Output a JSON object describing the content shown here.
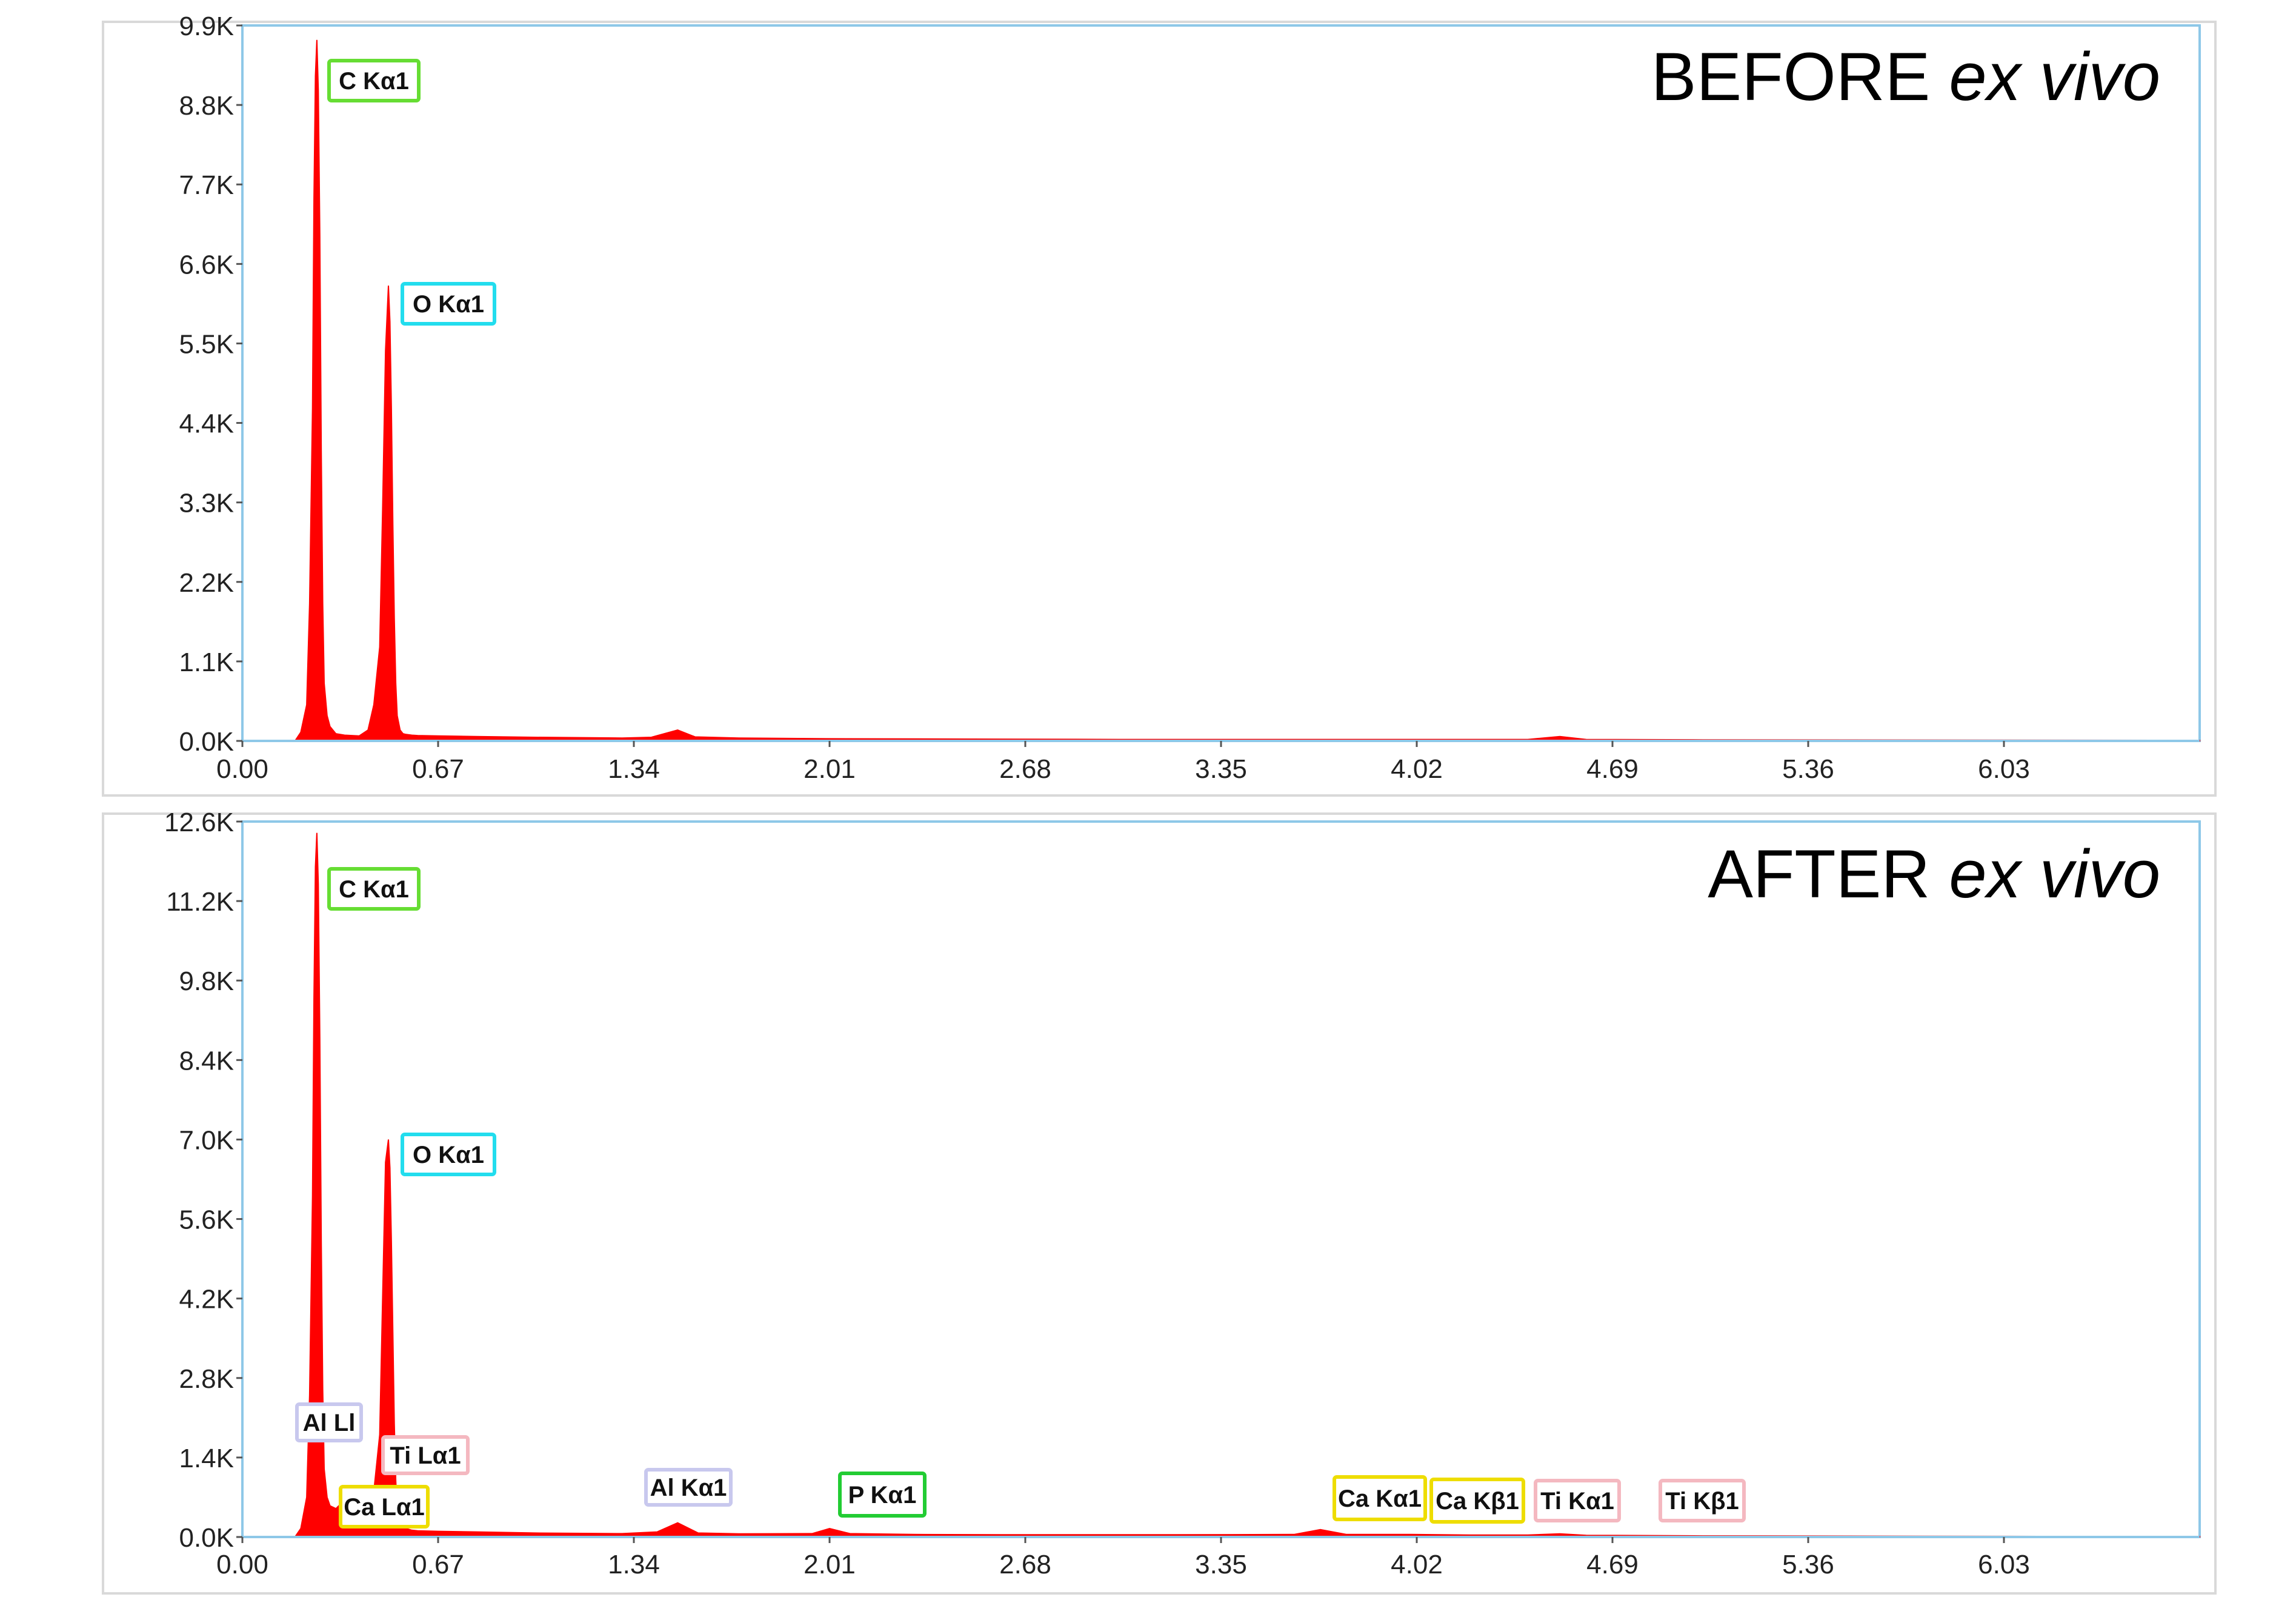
{
  "chart_data": [
    {
      "type": "area",
      "title": "BEFORE ex vivo",
      "title_main": "BEFORE ",
      "title_italic": "ex vivo",
      "xlabel": "",
      "ylabel": "",
      "xlim": [
        0.0,
        6.7
      ],
      "ylim": [
        0,
        9900
      ],
      "x_ticks": [
        0.0,
        0.67,
        1.34,
        2.01,
        2.68,
        3.35,
        4.02,
        4.69,
        5.36,
        6.03
      ],
      "x_tick_labels": [
        "0.00",
        "0.67",
        "1.34",
        "2.01",
        "2.68",
        "3.35",
        "4.02",
        "4.69",
        "5.36",
        "6.03"
      ],
      "y_ticks": [
        0,
        1100,
        2200,
        3300,
        4400,
        5500,
        6600,
        7700,
        8800,
        9900
      ],
      "y_tick_labels": [
        "0.0K",
        "1.1K",
        "2.2K",
        "3.3K",
        "4.4K",
        "5.5K",
        "6.6K",
        "7.7K",
        "8.8K",
        "9.9K"
      ],
      "grid": false,
      "series_color": "#ff0000",
      "spectrum": {
        "x": [
          0.18,
          0.2,
          0.22,
          0.23,
          0.24,
          0.245,
          0.25,
          0.255,
          0.26,
          0.265,
          0.27,
          0.275,
          0.28,
          0.29,
          0.3,
          0.32,
          0.35,
          0.4,
          0.43,
          0.45,
          0.47,
          0.48,
          0.49,
          0.5,
          0.505,
          0.51,
          0.515,
          0.52,
          0.525,
          0.53,
          0.54,
          0.55,
          0.56,
          0.58,
          0.6,
          0.67,
          0.8,
          1.0,
          1.3,
          1.4,
          1.49,
          1.55,
          1.7,
          2.0,
          2.5,
          3.0,
          3.5,
          4.0,
          4.4,
          4.51,
          4.6,
          5.0,
          6.0,
          6.7
        ],
        "y": [
          0,
          120,
          500,
          1900,
          4600,
          7500,
          9200,
          9700,
          9000,
          7000,
          4000,
          1900,
          800,
          350,
          200,
          100,
          80,
          70,
          150,
          500,
          1300,
          3200,
          5400,
          6300,
          5800,
          4600,
          3000,
          1700,
          800,
          350,
          150,
          100,
          90,
          80,
          75,
          70,
          60,
          50,
          40,
          50,
          150,
          55,
          40,
          30,
          25,
          20,
          20,
          20,
          20,
          60,
          20,
          15,
          10,
          8
        ]
      },
      "peak_labels": [
        {
          "text": "C  Kα1",
          "color": "#66dd33"
        },
        {
          "text": "O  Kα1",
          "color": "#22ddee"
        }
      ]
    },
    {
      "type": "area",
      "title": "AFTER ex vivo",
      "title_main": "AFTER ",
      "title_italic": "ex vivo",
      "xlabel": "",
      "ylabel": "",
      "xlim": [
        0.0,
        6.7
      ],
      "ylim": [
        0,
        12600
      ],
      "x_ticks": [
        0.0,
        0.67,
        1.34,
        2.01,
        2.68,
        3.35,
        4.02,
        4.69,
        5.36,
        6.03
      ],
      "x_tick_labels": [
        "0.00",
        "0.67",
        "1.34",
        "2.01",
        "2.68",
        "3.35",
        "4.02",
        "4.69",
        "5.36",
        "6.03"
      ],
      "y_ticks": [
        0,
        1400,
        2800,
        4200,
        5600,
        7000,
        8400,
        9800,
        11200,
        12600
      ],
      "y_tick_labels": [
        "0.0K",
        "1.4K",
        "2.8K",
        "4.2K",
        "5.6K",
        "7.0K",
        "8.4K",
        "9.8K",
        "11.2K",
        "12.6K"
      ],
      "grid": false,
      "series_color": "#ff0000",
      "spectrum": {
        "x": [
          0.18,
          0.2,
          0.22,
          0.23,
          0.24,
          0.245,
          0.25,
          0.255,
          0.26,
          0.265,
          0.27,
          0.275,
          0.28,
          0.29,
          0.3,
          0.32,
          0.34,
          0.35,
          0.37,
          0.39,
          0.4,
          0.42,
          0.43,
          0.45,
          0.47,
          0.48,
          0.49,
          0.5,
          0.505,
          0.51,
          0.515,
          0.52,
          0.525,
          0.53,
          0.54,
          0.55,
          0.56,
          0.58,
          0.6,
          0.67,
          0.8,
          1.0,
          1.3,
          1.42,
          1.49,
          1.56,
          1.7,
          1.95,
          2.01,
          2.08,
          2.3,
          2.68,
          3.2,
          3.6,
          3.69,
          3.78,
          3.9,
          4.0,
          4.2,
          4.4,
          4.51,
          4.6,
          5.0,
          6.0,
          6.7
        ],
        "y": [
          0,
          150,
          700,
          2500,
          6000,
          9500,
          11800,
          12400,
          11500,
          8800,
          5200,
          2600,
          1200,
          700,
          550,
          500,
          600,
          850,
          700,
          550,
          600,
          700,
          600,
          800,
          1800,
          4200,
          6600,
          7000,
          6500,
          5200,
          3600,
          2000,
          1000,
          450,
          250,
          180,
          150,
          120,
          110,
          100,
          90,
          70,
          60,
          90,
          250,
          70,
          55,
          60,
          150,
          60,
          45,
          40,
          40,
          45,
          130,
          45,
          45,
          45,
          35,
          35,
          55,
          30,
          20,
          12,
          8
        ]
      },
      "peak_labels": [
        {
          "text": "C  Kα1",
          "color": "#66dd33"
        },
        {
          "text": "O  Kα1",
          "color": "#22ddee"
        },
        {
          "text": "Al Ll",
          "color": "#c8c8ee"
        },
        {
          "text": "Ti Lα1",
          "color": "#f4b8c0"
        },
        {
          "text": "Ca Lα1",
          "color": "#eedd00"
        },
        {
          "text": "Al Kα1",
          "color": "#c8c8ee"
        },
        {
          "text": "P  Kα1",
          "color": "#22cc33"
        },
        {
          "text": "Ca Kα1",
          "color": "#eedd00"
        },
        {
          "text": "Ca Kβ1",
          "color": "#eedd00"
        },
        {
          "text": "Ti Kα1",
          "color": "#f4b8c0"
        },
        {
          "text": "Ti Kβ1",
          "color": "#f4b8c0"
        }
      ]
    }
  ]
}
